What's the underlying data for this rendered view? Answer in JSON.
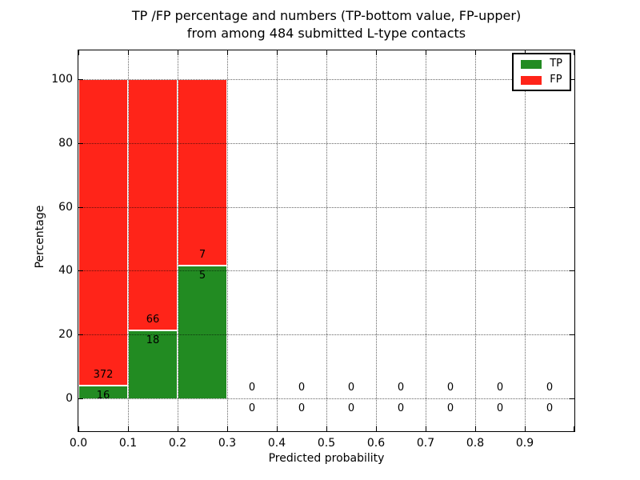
{
  "title": {
    "line1": "TP /FP percentage and numbers (TP-bottom value, FP-upper)",
    "line2": "from among 484 submitted L-type contacts"
  },
  "x_axis": {
    "label": "Predicted probability",
    "tick_labels": [
      "0.0",
      "0.1",
      "0.2",
      "0.3",
      "0.4",
      "0.5",
      "0.6",
      "0.7",
      "0.8",
      "0.9"
    ]
  },
  "y_axis": {
    "label": "Percentage",
    "tick_labels": [
      "0",
      "20",
      "40",
      "60",
      "80",
      "100"
    ],
    "tick_values": [
      0,
      20,
      40,
      60,
      80,
      100
    ]
  },
  "legend": {
    "items": [
      {
        "label": "TP",
        "color": "#228b22"
      },
      {
        "label": "FP",
        "color": "#ff2419"
      }
    ]
  },
  "chart_data": {
    "type": "bar",
    "stacked": true,
    "percentage_normalized": true,
    "title": "TP /FP percentage and numbers (TP-bottom value, FP-upper) from among 484 submitted L-type contacts",
    "xlabel": "Predicted probability",
    "ylabel": "Percentage",
    "xlim": [
      0.0,
      1.0
    ],
    "ylim": [
      -11,
      109
    ],
    "grid": "dotted",
    "legend_position": "upper right",
    "total_contacts": 484,
    "bin_starts": [
      0.0,
      0.1,
      0.2,
      0.3,
      0.4,
      0.5,
      0.6,
      0.7,
      0.8,
      0.9
    ],
    "bin_width": 0.1,
    "series": [
      {
        "name": "TP",
        "color": "#228b22",
        "counts": [
          16,
          18,
          5,
          0,
          0,
          0,
          0,
          0,
          0,
          0
        ],
        "percent": [
          4.12,
          21.43,
          41.67,
          0,
          0,
          0,
          0,
          0,
          0,
          0
        ]
      },
      {
        "name": "FP",
        "color": "#ff2419",
        "counts": [
          372,
          66,
          7,
          0,
          0,
          0,
          0,
          0,
          0,
          0
        ],
        "percent": [
          95.88,
          78.57,
          58.33,
          0,
          0,
          0,
          0,
          0,
          0,
          0
        ]
      }
    ]
  }
}
